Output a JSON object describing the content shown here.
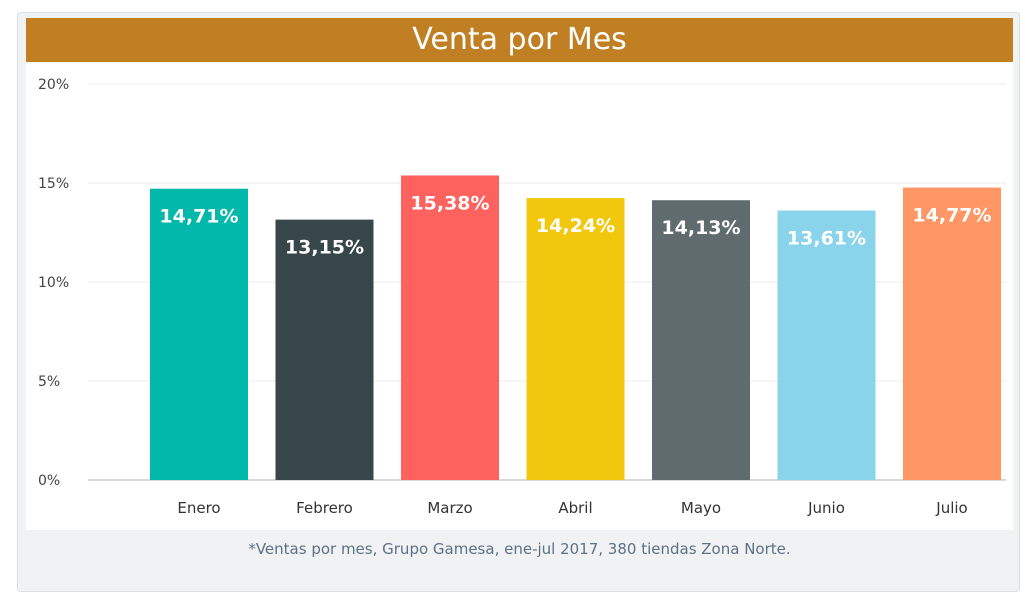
{
  "chart_data": {
    "type": "bar",
    "title": "Venta por Mes",
    "categories": [
      "Enero",
      "Febrero",
      "Marzo",
      "Abril",
      "Mayo",
      "Junio",
      "Julio"
    ],
    "values": [
      14.71,
      13.15,
      15.38,
      14.24,
      14.13,
      13.61,
      14.77
    ],
    "data_labels": [
      "14,71%",
      "13,15%",
      "15,38%",
      "14,24%",
      "14,13%",
      "13,61%",
      "14,77%"
    ],
    "colors": [
      "#01b8aa",
      "#374649",
      "#fd625e",
      "#f2c80f",
      "#5f6b6d",
      "#8ad4eb",
      "#fe9666"
    ],
    "yticks": [
      0,
      5,
      10,
      15,
      20
    ],
    "ytick_labels": [
      "0%",
      "5%",
      "10%",
      "15%",
      "20%"
    ],
    "ylim": [
      0,
      20
    ],
    "xlabel": "",
    "ylabel": "",
    "grid": true,
    "legend": "none"
  },
  "footnote": "*Ventas por mes, Grupo Gamesa, ene-jul 2017, 380 tiendas Zona Norte."
}
